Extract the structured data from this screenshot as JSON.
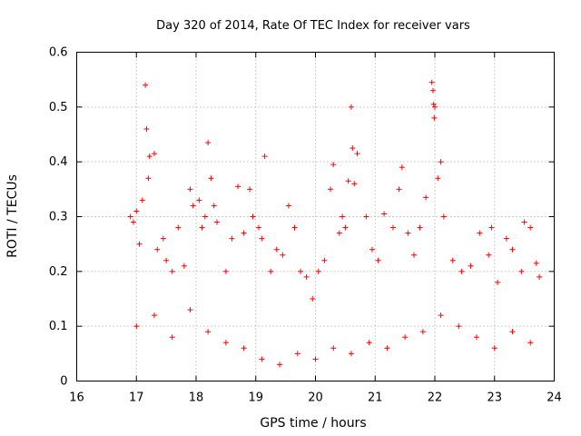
{
  "chart_data": {
    "type": "scatter",
    "title": "Day 320 of 2014, Rate Of TEC Index for receiver vars",
    "xlabel": "GPS time / hours",
    "ylabel": "ROTI / TECUs",
    "xlim": [
      16,
      24
    ],
    "ylim": [
      0,
      0.6
    ],
    "xticks": [
      "16",
      "17",
      "18",
      "19",
      "20",
      "21",
      "22",
      "23",
      "24"
    ],
    "yticks": [
      "0",
      "0.1",
      "0.2",
      "0.3",
      "0.4",
      "0.5",
      "0.6"
    ],
    "grid": true,
    "marker": "+",
    "color": "#ff0000",
    "series": [
      {
        "name": "ROTI",
        "points": [
          [
            16.9,
            0.3
          ],
          [
            16.95,
            0.29
          ],
          [
            17.0,
            0.31
          ],
          [
            17.05,
            0.25
          ],
          [
            17.1,
            0.33
          ],
          [
            17.15,
            0.54
          ],
          [
            17.17,
            0.46
          ],
          [
            17.2,
            0.37
          ],
          [
            17.22,
            0.41
          ],
          [
            17.3,
            0.415
          ],
          [
            17.35,
            0.24
          ],
          [
            17.45,
            0.26
          ],
          [
            17.5,
            0.22
          ],
          [
            17.6,
            0.2
          ],
          [
            17.7,
            0.28
          ],
          [
            17.8,
            0.21
          ],
          [
            17.9,
            0.35
          ],
          [
            17.95,
            0.32
          ],
          [
            18.05,
            0.33
          ],
          [
            18.1,
            0.28
          ],
          [
            18.15,
            0.3
          ],
          [
            18.2,
            0.435
          ],
          [
            18.25,
            0.37
          ],
          [
            18.3,
            0.32
          ],
          [
            18.35,
            0.29
          ],
          [
            18.5,
            0.2
          ],
          [
            18.6,
            0.26
          ],
          [
            18.7,
            0.355
          ],
          [
            18.8,
            0.27
          ],
          [
            18.9,
            0.35
          ],
          [
            18.95,
            0.3
          ],
          [
            19.05,
            0.28
          ],
          [
            19.1,
            0.26
          ],
          [
            19.15,
            0.41
          ],
          [
            19.25,
            0.2
          ],
          [
            19.35,
            0.24
          ],
          [
            19.45,
            0.23
          ],
          [
            19.55,
            0.32
          ],
          [
            19.65,
            0.28
          ],
          [
            19.75,
            0.2
          ],
          [
            19.85,
            0.19
          ],
          [
            19.95,
            0.15
          ],
          [
            20.05,
            0.2
          ],
          [
            20.15,
            0.22
          ],
          [
            20.25,
            0.35
          ],
          [
            20.3,
            0.395
          ],
          [
            20.4,
            0.27
          ],
          [
            20.45,
            0.3
          ],
          [
            20.5,
            0.28
          ],
          [
            20.55,
            0.365
          ],
          [
            20.6,
            0.5
          ],
          [
            20.62,
            0.425
          ],
          [
            20.65,
            0.36
          ],
          [
            20.7,
            0.415
          ],
          [
            20.85,
            0.3
          ],
          [
            20.95,
            0.24
          ],
          [
            21.05,
            0.22
          ],
          [
            21.15,
            0.305
          ],
          [
            21.3,
            0.28
          ],
          [
            21.4,
            0.35
          ],
          [
            21.45,
            0.39
          ],
          [
            21.55,
            0.27
          ],
          [
            21.65,
            0.23
          ],
          [
            21.75,
            0.28
          ],
          [
            21.85,
            0.335
          ],
          [
            21.95,
            0.545
          ],
          [
            21.97,
            0.53
          ],
          [
            21.98,
            0.505
          ],
          [
            21.99,
            0.48
          ],
          [
            22.0,
            0.5
          ],
          [
            22.05,
            0.37
          ],
          [
            22.1,
            0.4
          ],
          [
            22.15,
            0.3
          ],
          [
            22.3,
            0.22
          ],
          [
            22.45,
            0.2
          ],
          [
            22.6,
            0.21
          ],
          [
            22.75,
            0.27
          ],
          [
            22.9,
            0.23
          ],
          [
            22.95,
            0.28
          ],
          [
            23.05,
            0.18
          ],
          [
            23.2,
            0.26
          ],
          [
            23.3,
            0.24
          ],
          [
            23.45,
            0.2
          ],
          [
            23.5,
            0.29
          ],
          [
            23.6,
            0.28
          ],
          [
            23.7,
            0.215
          ],
          [
            23.75,
            0.19
          ],
          [
            17.0,
            0.1
          ],
          [
            17.3,
            0.12
          ],
          [
            17.6,
            0.08
          ],
          [
            17.9,
            0.13
          ],
          [
            18.2,
            0.09
          ],
          [
            18.5,
            0.07
          ],
          [
            18.8,
            0.06
          ],
          [
            19.1,
            0.04
          ],
          [
            19.4,
            0.03
          ],
          [
            19.7,
            0.05
          ],
          [
            20.0,
            0.04
          ],
          [
            20.3,
            0.06
          ],
          [
            20.6,
            0.05
          ],
          [
            20.9,
            0.07
          ],
          [
            21.2,
            0.06
          ],
          [
            21.5,
            0.08
          ],
          [
            21.8,
            0.09
          ],
          [
            22.1,
            0.12
          ],
          [
            22.4,
            0.1
          ],
          [
            22.7,
            0.08
          ],
          [
            23.0,
            0.06
          ],
          [
            23.3,
            0.09
          ],
          [
            23.6,
            0.07
          ]
        ]
      }
    ]
  }
}
